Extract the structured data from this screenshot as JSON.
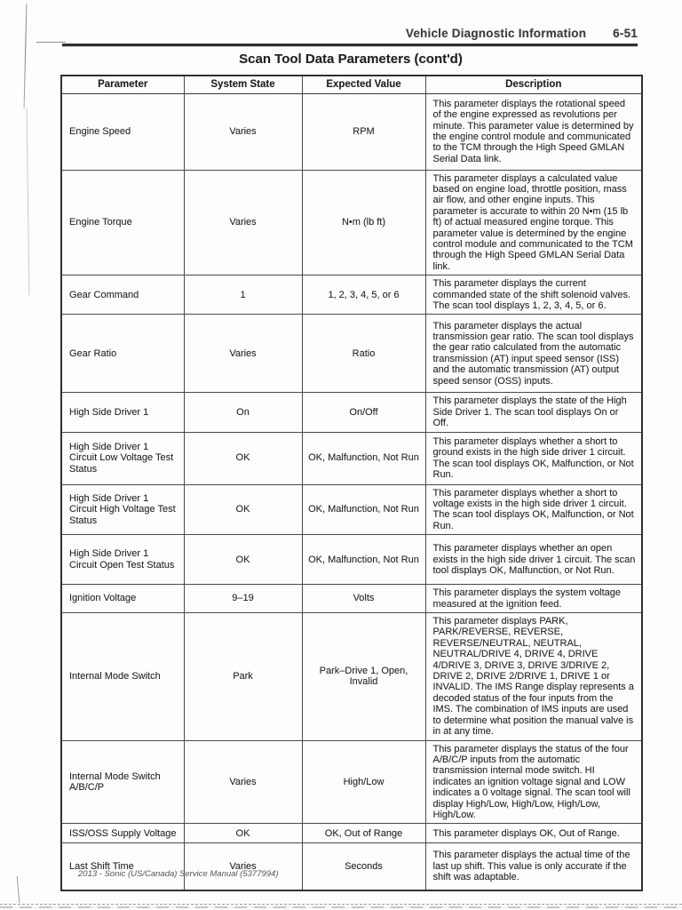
{
  "page_header": {
    "section_title": "Vehicle Diagnostic Information",
    "page_number": "6-51"
  },
  "table": {
    "title": "Scan Tool Data Parameters (cont'd)",
    "columns": [
      "Parameter",
      "System State",
      "Expected Value",
      "Description"
    ],
    "rows": [
      {
        "parameter": "Engine Speed",
        "system_state": "Varies",
        "expected_value": "RPM",
        "description": "This parameter displays the rotational speed of the engine expressed as revolutions per minute. This parameter value is determined by the engine control module and communicated to the TCM through the High Speed GMLAN Serial Data link."
      },
      {
        "parameter": "Engine Torque",
        "system_state": "Varies",
        "expected_value": "N•m (lb ft)",
        "description": "This parameter displays a calculated value based on engine load, throttle position, mass air flow, and other engine inputs. This parameter is accurate to within 20 N•m (15 lb ft) of actual measured engine torque. This parameter value is determined by the engine control module and communicated to the TCM through the High Speed GMLAN Serial Data link."
      },
      {
        "parameter": "Gear Command",
        "system_state": "1",
        "expected_value": "1, 2, 3, 4, 5, or 6",
        "description": "This parameter displays the current commanded state of the shift solenoid valves. The scan tool displays 1, 2, 3, 4, 5, or 6."
      },
      {
        "parameter": "Gear Ratio",
        "system_state": "Varies",
        "expected_value": "Ratio",
        "description": "This parameter displays the actual transmission gear ratio. The scan tool displays the gear ratio calculated from the automatic transmission (AT) input speed sensor (ISS) and the automatic transmission (AT) output speed sensor (OSS) inputs."
      },
      {
        "parameter": "High Side Driver 1",
        "system_state": "On",
        "expected_value": "On/Off",
        "description": "This parameter displays the state of the High Side Driver 1. The scan tool displays On or Off."
      },
      {
        "parameter": "High Side Driver 1 Circuit Low Voltage Test Status",
        "system_state": "OK",
        "expected_value": "OK, Malfunction, Not Run",
        "description": "This parameter displays whether a short to ground exists in the high side driver 1 circuit. The scan tool displays OK, Malfunction, or Not Run."
      },
      {
        "parameter": "High Side Driver 1 Circuit High Voltage Test Status",
        "system_state": "OK",
        "expected_value": "OK, Malfunction, Not Run",
        "description": "This parameter displays whether a short to voltage exists in the high side driver 1 circuit. The scan tool displays OK, Malfunction, or Not Run."
      },
      {
        "parameter": "High Side Driver 1 Circuit Open Test Status",
        "system_state": "OK",
        "expected_value": "OK, Malfunction, Not Run",
        "description": "This parameter displays whether an open exists in the high side driver 1 circuit. The scan tool displays OK, Malfunction, or Not Run."
      },
      {
        "parameter": "Ignition Voltage",
        "system_state": "9–19",
        "expected_value": "Volts",
        "description": "This parameter displays the system voltage measured at the ignition feed."
      },
      {
        "parameter": "Internal Mode Switch",
        "system_state": "Park",
        "expected_value": "Park–Drive 1, Open, Invalid",
        "description": "This parameter displays PARK, PARK/REVERSE, REVERSE, REVERSE/NEUTRAL, NEUTRAL, NEUTRAL/DRIVE 4, DRIVE 4, DRIVE 4/DRIVE 3, DRIVE 3, DRIVE 3/DRIVE 2, DRIVE 2, DRIVE 2/DRIVE 1, DRIVE 1 or INVALID. The IMS Range display represents a decoded status of the four inputs from the IMS. The combination of IMS inputs are used to determine what position the manual valve is in at any time."
      },
      {
        "parameter": "Internal Mode Switch A/B/C/P",
        "system_state": "Varies",
        "expected_value": "High/Low",
        "description": "This parameter displays the status of the four A/B/C/P inputs from the automatic transmission internal mode switch. HI indicates an ignition voltage signal and LOW indicates a 0 voltage signal. The scan tool will display High/Low, High/Low, High/Low, High/Low."
      },
      {
        "parameter": "ISS/OSS Supply Voltage",
        "system_state": "OK",
        "expected_value": "OK, Out of Range",
        "description": "This parameter displays OK, Out of Range."
      },
      {
        "parameter": "Last Shift Time",
        "system_state": "Varies",
        "expected_value": "Seconds",
        "description": "This parameter displays the actual time of the last up shift. This value is only accurate if the shift was adaptable."
      }
    ]
  },
  "footer": {
    "text": "2013 - Sonic (US/Canada) Service Manual (5377994)"
  }
}
